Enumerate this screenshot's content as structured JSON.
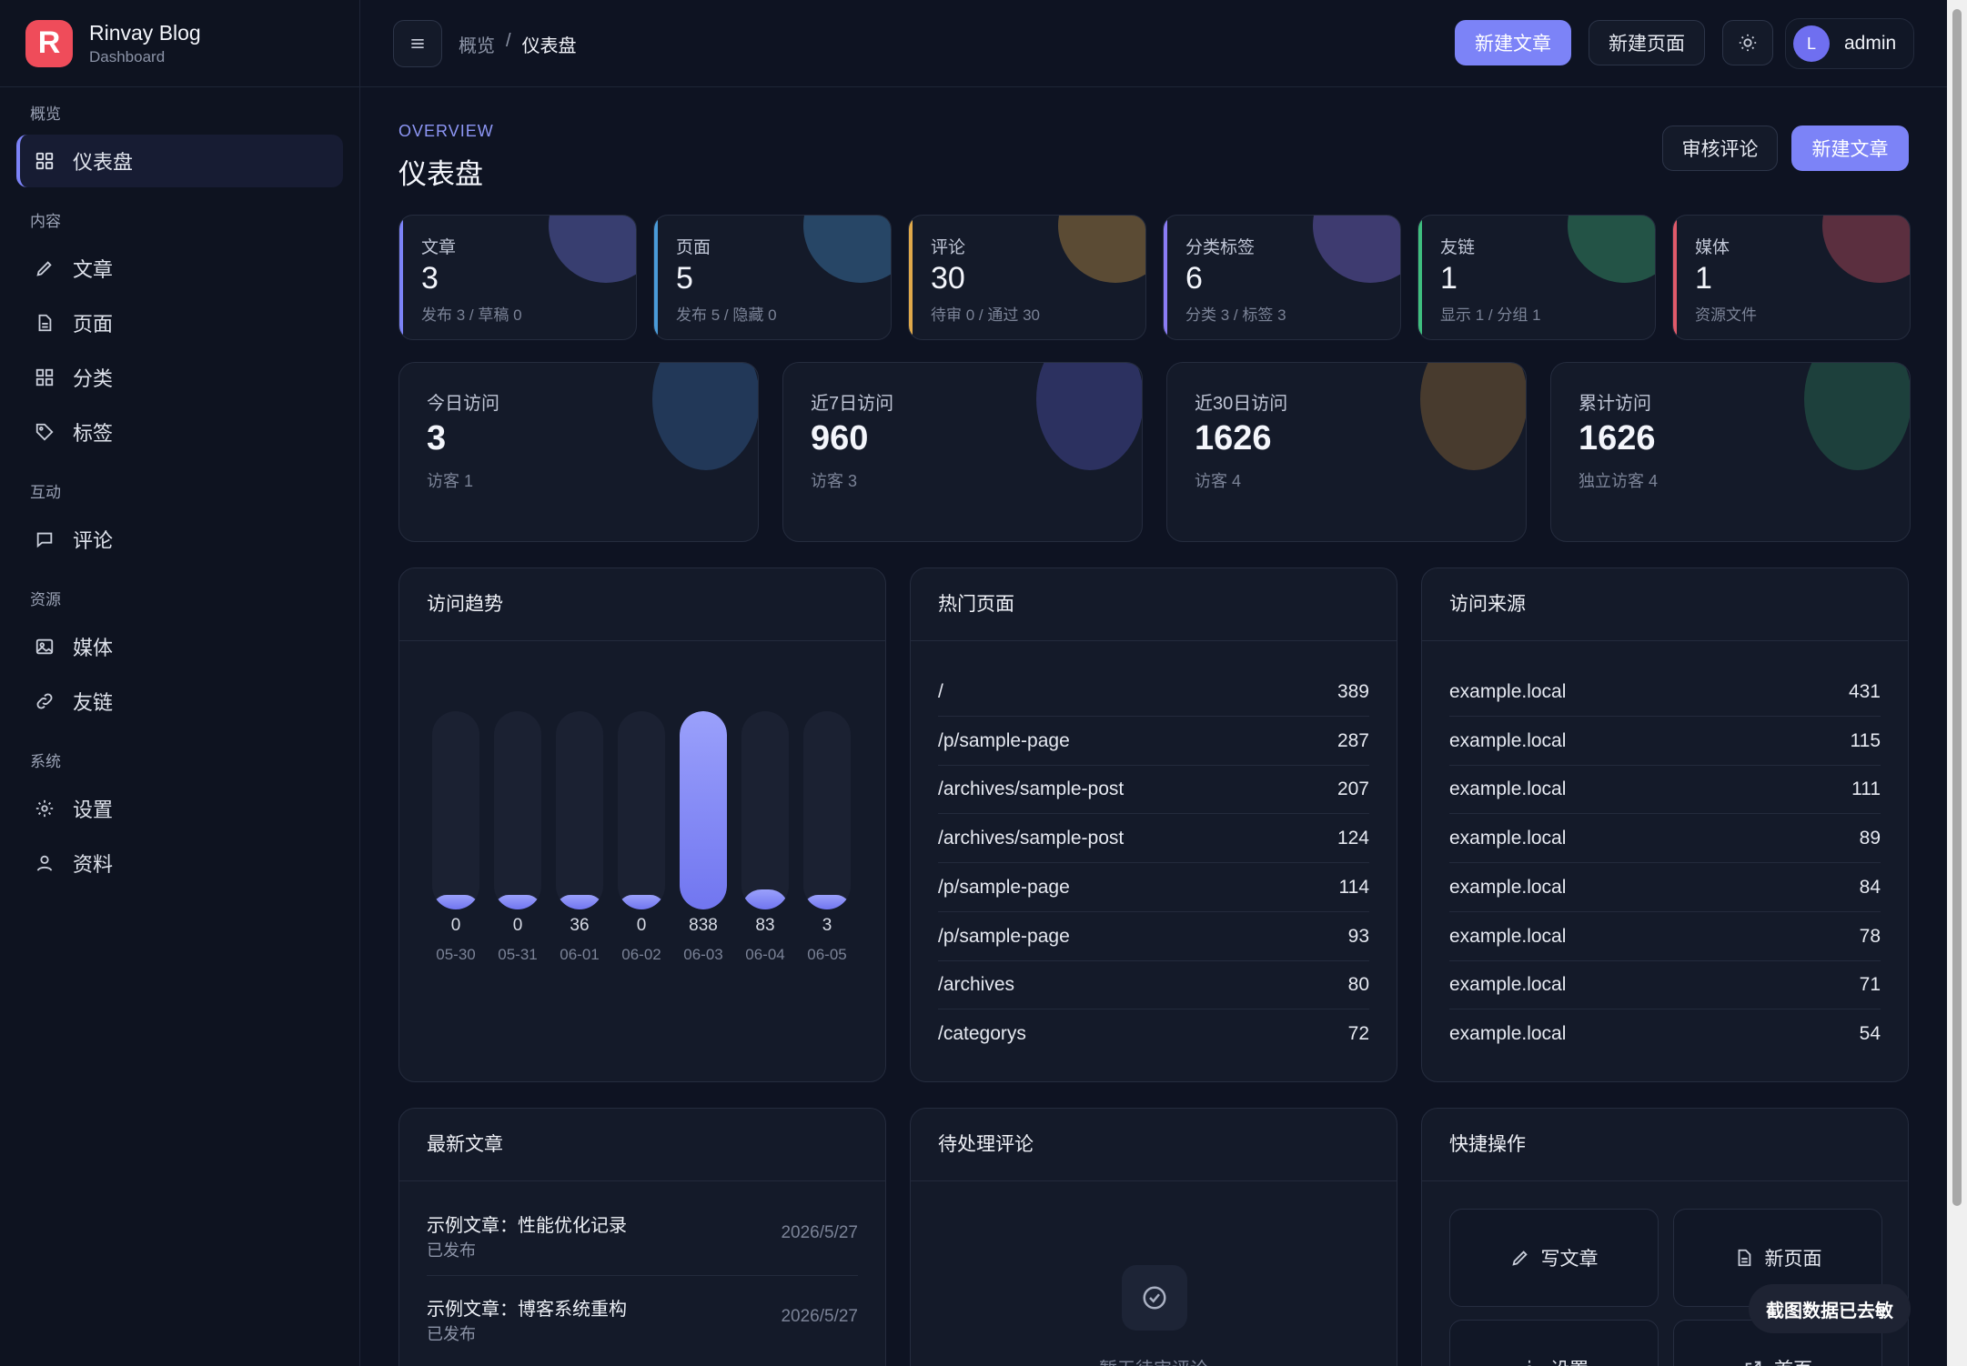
{
  "brand": {
    "name": "Rinvay Blog",
    "sub": "Dashboard",
    "logo": "R"
  },
  "sidebar": {
    "groups": [
      {
        "label": "概览",
        "items": [
          {
            "label": "仪表盘",
            "icon": "grid-icon"
          }
        ]
      },
      {
        "label": "内容",
        "items": [
          {
            "label": "文章",
            "icon": "pencil-icon"
          },
          {
            "label": "页面",
            "icon": "file-icon"
          },
          {
            "label": "分类",
            "icon": "grid-icon"
          },
          {
            "label": "标签",
            "icon": "tag-icon"
          }
        ]
      },
      {
        "label": "互动",
        "items": [
          {
            "label": "评论",
            "icon": "comment-icon"
          }
        ]
      },
      {
        "label": "资源",
        "items": [
          {
            "label": "媒体",
            "icon": "image-icon"
          },
          {
            "label": "友链",
            "icon": "link-icon"
          }
        ]
      },
      {
        "label": "系统",
        "items": [
          {
            "label": "设置",
            "icon": "gear-icon"
          },
          {
            "label": "资料",
            "icon": "user-icon"
          }
        ]
      }
    ]
  },
  "topbar": {
    "crumb_parent": "概览",
    "crumb_sep": "/",
    "crumb_current": "仪表盘",
    "new_post": "新建文章",
    "new_page": "新建页面",
    "user": "admin",
    "avatar_letter": "L"
  },
  "header": {
    "eyebrow": "OVERVIEW",
    "title": "仪表盘",
    "review": "审核评论",
    "new_post": "新建文章"
  },
  "stats": [
    {
      "label": "文章",
      "value": "3",
      "sub": "发布 3 / 草稿 0",
      "color": "#7c83f7"
    },
    {
      "label": "页面",
      "value": "5",
      "sub": "发布 5 / 隐藏 0",
      "color": "#4a9bd9"
    },
    {
      "label": "评论",
      "value": "30",
      "sub": "待审 0 / 通过 30",
      "color": "#e0a94a"
    },
    {
      "label": "分类标签",
      "value": "6",
      "sub": "分类 3 / 标签 3",
      "color": "#8b7cf5"
    },
    {
      "label": "友链",
      "value": "1",
      "sub": "显示 1 / 分组 1",
      "color": "#3fbf7f"
    },
    {
      "label": "媒体",
      "value": "1",
      "sub": "资源文件",
      "color": "#e05a6a"
    }
  ],
  "visits": [
    {
      "label": "今日访问",
      "value": "3",
      "sub": "访客 1",
      "color": "#3c74b3"
    },
    {
      "label": "近7日访问",
      "value": "960",
      "sub": "访客 3",
      "color": "#5a5ec9"
    },
    {
      "label": "近30日访问",
      "value": "1626",
      "sub": "访客 4",
      "color": "#a97a3a"
    },
    {
      "label": "累计访问",
      "value": "1626",
      "sub": "独立访客 4",
      "color": "#2f8a62"
    }
  ],
  "trend": {
    "title": "访问趋势"
  },
  "chart_data": {
    "type": "bar",
    "categories": [
      "05-30",
      "05-31",
      "06-01",
      "06-02",
      "06-03",
      "06-04",
      "06-05"
    ],
    "values": [
      0,
      0,
      36,
      0,
      838,
      83,
      3
    ],
    "title": "访问趋势"
  },
  "hot_pages": {
    "title": "热门页面",
    "rows": [
      {
        "path": "/",
        "count": "389"
      },
      {
        "path": "/p/sample-page",
        "count": "287"
      },
      {
        "path": "/archives/sample-post",
        "count": "207"
      },
      {
        "path": "/archives/sample-post",
        "count": "124"
      },
      {
        "path": "/p/sample-page",
        "count": "114"
      },
      {
        "path": "/p/sample-page",
        "count": "93"
      },
      {
        "path": "/archives",
        "count": "80"
      },
      {
        "path": "/categorys",
        "count": "72"
      }
    ]
  },
  "sources": {
    "title": "访问来源",
    "rows": [
      {
        "host": "example.local",
        "count": "431"
      },
      {
        "host": "example.local",
        "count": "115"
      },
      {
        "host": "example.local",
        "count": "111"
      },
      {
        "host": "example.local",
        "count": "89"
      },
      {
        "host": "example.local",
        "count": "84"
      },
      {
        "host": "example.local",
        "count": "78"
      },
      {
        "host": "example.local",
        "count": "71"
      },
      {
        "host": "example.local",
        "count": "54"
      }
    ]
  },
  "latest": {
    "title": "最新文章",
    "posts": [
      {
        "title": "示例文章：性能优化记录",
        "status": "已发布",
        "date": "2026/5/27"
      },
      {
        "title": "示例文章：博客系统重构",
        "status": "已发布",
        "date": "2026/5/27"
      }
    ]
  },
  "pending": {
    "title": "待处理评论",
    "empty": "暂无待审评论"
  },
  "quick": {
    "title": "快捷操作",
    "items": [
      {
        "label": "写文章",
        "icon": "pencil-icon"
      },
      {
        "label": "新页面",
        "icon": "file-icon"
      },
      {
        "label": "设置",
        "icon": "gear-icon"
      },
      {
        "label": "首页",
        "icon": "external-icon"
      }
    ]
  },
  "toast": "截图数据已去敏"
}
